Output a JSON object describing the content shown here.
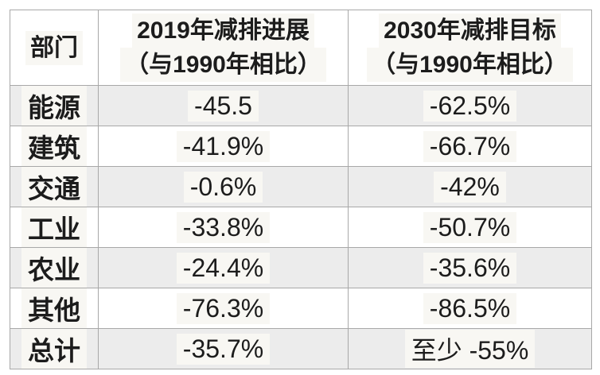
{
  "chart_data": {
    "type": "table",
    "title": "",
    "columns": [
      "部门",
      "2019年减排进展（与1990年相比）",
      "2030年减排目标（与1990年相比）"
    ],
    "rows": [
      [
        "能源",
        "-45.5",
        "-62.5%"
      ],
      [
        "建筑",
        "-41.9%",
        "-66.7%"
      ],
      [
        "交通",
        "-0.6%",
        "-42%"
      ],
      [
        "工业",
        "-33.8%",
        "-50.7%"
      ],
      [
        "农业",
        "-24.4%",
        "-35.6%"
      ],
      [
        "其他",
        "-76.3%",
        "-86.5%"
      ],
      [
        "总计",
        "-35.7%",
        "至少 -55%"
      ]
    ],
    "layout": {
      "zebra_striping": true,
      "odd_row_bg": "#ececec",
      "grid": true
    }
  },
  "table": {
    "header": {
      "col1": "部门",
      "col2_line1": "2019年减排进展",
      "col2_line2": "（与1990年相比）",
      "col3_line1": "2030年减排目标",
      "col3_line2": "（与1990年相比）"
    },
    "rows": [
      {
        "sector": "能源",
        "progress_2019": "-45.5",
        "target_2030": "-62.5%"
      },
      {
        "sector": "建筑",
        "progress_2019": "-41.9%",
        "target_2030": "-66.7%"
      },
      {
        "sector": "交通",
        "progress_2019": "-0.6%",
        "target_2030": "-42%"
      },
      {
        "sector": "工业",
        "progress_2019": "-33.8%",
        "target_2030": "-50.7%"
      },
      {
        "sector": "农业",
        "progress_2019": "-24.4%",
        "target_2030": "-35.6%"
      },
      {
        "sector": "其他",
        "progress_2019": "-76.3%",
        "target_2030": "-86.5%"
      },
      {
        "sector": "总计",
        "progress_2019": "-35.7%",
        "target_2030": "至少 -55%"
      }
    ]
  },
  "colors": {
    "border": "#a8a8a8",
    "row_alt_bg": "#ececec",
    "text": "#1c1c1c",
    "text_highlight_bg": "#f8f7f3",
    "page_bg": "#ffffff"
  }
}
